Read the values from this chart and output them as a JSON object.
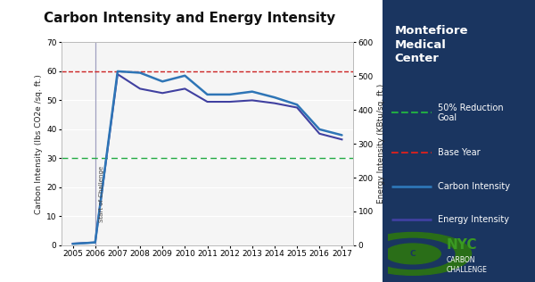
{
  "title": "Carbon Intensity and Energy Intensity",
  "ylabel_left": "Carbon Intensity (lbs CO2e /sq. ft.)",
  "ylabel_right": "Energy Intensity (KBtu/sq. ft.)",
  "years": [
    2005,
    2006,
    2007,
    2008,
    2009,
    2010,
    2011,
    2012,
    2013,
    2014,
    2015,
    2016,
    2017
  ],
  "carbon_intensity": [
    0.5,
    1.0,
    60.0,
    59.5,
    56.5,
    58.5,
    52.0,
    52.0,
    53.0,
    51.0,
    48.5,
    40.0,
    38.0
  ],
  "energy_intensity_scaled": [
    0.6,
    1.0,
    59.0,
    54.0,
    52.5,
    54.0,
    49.5,
    49.5,
    50.0,
    49.0,
    47.5,
    38.5,
    36.5
  ],
  "energy_intensity_kbtu": [
    4.0,
    8.0,
    505.0,
    460.0,
    450.0,
    462.0,
    425.0,
    425.0,
    430.0,
    420.0,
    408.0,
    330.0,
    315.0
  ],
  "base_year_line": 60.0,
  "reduction_goal_line": 30.0,
  "ylim_left": [
    0,
    70
  ],
  "ylim_right": [
    0,
    600
  ],
  "fig_bg_color": "#1a3560",
  "plot_bg_color": "#f5f5f5",
  "white_area_color": "#ffffff",
  "carbon_color": "#2e75b6",
  "energy_color": "#4040a0",
  "base_year_color": "#cc2222",
  "reduction_goal_color": "#22aa44",
  "vline_color": "#a0a0c0",
  "vline_year": 2006,
  "vline_label": "Start of Challenge",
  "title_fontsize": 11,
  "axis_label_fontsize": 6.5,
  "tick_fontsize": 6.5,
  "legend_title_fontsize": 10,
  "legend_fontsize": 7
}
